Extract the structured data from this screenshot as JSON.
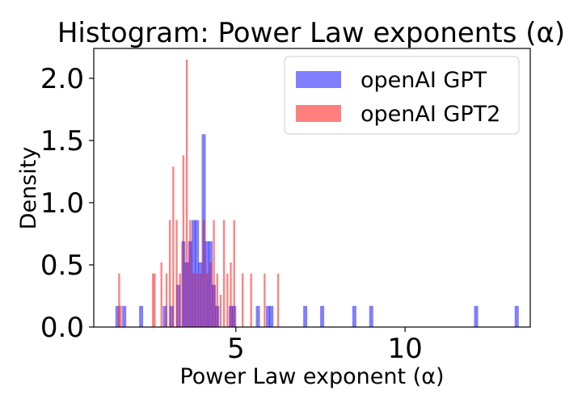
{
  "chart_data": {
    "type": "histogram",
    "title": "Histogram: Power Law exponents (α)",
    "xlabel": "Power Law exponent (α)",
    "ylabel": "Density",
    "xlim": [
      0.8,
      13.7
    ],
    "ylim": [
      0,
      2.24
    ],
    "xticks": [
      5,
      10
    ],
    "xtick_labels": [
      "5",
      "10"
    ],
    "yticks": [
      0,
      0.5,
      1.0,
      1.5,
      2.0
    ],
    "ytick_labels": [
      "0.0",
      "0.5",
      "1.0",
      "1.5",
      "2.0"
    ],
    "grid": false,
    "legend_position": "top-right",
    "series": [
      {
        "name": "openAI GPT",
        "color": "#0000ff",
        "opacity": 0.5,
        "bin_width": 0.12,
        "bars": [
          {
            "x": 1.5,
            "y": 0.17
          },
          {
            "x": 1.7,
            "y": 0.17
          },
          {
            "x": 2.2,
            "y": 0.17
          },
          {
            "x": 2.9,
            "y": 0.17
          },
          {
            "x": 3.1,
            "y": 0.17
          },
          {
            "x": 3.3,
            "y": 0.34
          },
          {
            "x": 3.45,
            "y": 0.69
          },
          {
            "x": 3.55,
            "y": 0.52
          },
          {
            "x": 3.65,
            "y": 0.69
          },
          {
            "x": 3.75,
            "y": 0.86
          },
          {
            "x": 3.85,
            "y": 0.86
          },
          {
            "x": 3.95,
            "y": 0.52
          },
          {
            "x": 4.05,
            "y": 1.55
          },
          {
            "x": 4.15,
            "y": 0.69
          },
          {
            "x": 4.25,
            "y": 0.69
          },
          {
            "x": 4.35,
            "y": 0.34
          },
          {
            "x": 4.45,
            "y": 0.17
          },
          {
            "x": 4.85,
            "y": 0.17
          },
          {
            "x": 4.95,
            "y": 0.17
          },
          {
            "x": 5.65,
            "y": 0.17
          },
          {
            "x": 5.95,
            "y": 0.17
          },
          {
            "x": 6.05,
            "y": 0.17
          },
          {
            "x": 7.05,
            "y": 0.17
          },
          {
            "x": 7.55,
            "y": 0.17
          },
          {
            "x": 8.5,
            "y": 0.17
          },
          {
            "x": 9.0,
            "y": 0.17
          },
          {
            "x": 12.1,
            "y": 0.17
          },
          {
            "x": 13.3,
            "y": 0.17
          }
        ]
      },
      {
        "name": "openAI GPT2",
        "color": "#ff0000",
        "opacity": 0.5,
        "bin_width": 0.055,
        "bars": [
          {
            "x": 1.55,
            "y": 0.43
          },
          {
            "x": 1.6,
            "y": 0.17
          },
          {
            "x": 2.55,
            "y": 0.43
          },
          {
            "x": 2.6,
            "y": 0.43
          },
          {
            "x": 2.8,
            "y": 0.52
          },
          {
            "x": 2.95,
            "y": 0.43
          },
          {
            "x": 3.05,
            "y": 0.86
          },
          {
            "x": 3.15,
            "y": 1.29
          },
          {
            "x": 3.25,
            "y": 0.86
          },
          {
            "x": 3.35,
            "y": 0.43
          },
          {
            "x": 3.45,
            "y": 1.38
          },
          {
            "x": 3.55,
            "y": 2.15
          },
          {
            "x": 3.65,
            "y": 0.86
          },
          {
            "x": 3.75,
            "y": 0.43
          },
          {
            "x": 3.85,
            "y": 0.43
          },
          {
            "x": 3.95,
            "y": 0.43
          },
          {
            "x": 4.05,
            "y": 0.86
          },
          {
            "x": 4.15,
            "y": 0.43
          },
          {
            "x": 4.25,
            "y": 0.52
          },
          {
            "x": 4.35,
            "y": 0.86
          },
          {
            "x": 4.45,
            "y": 0.43
          },
          {
            "x": 4.55,
            "y": 0.26
          },
          {
            "x": 4.65,
            "y": 0.86
          },
          {
            "x": 4.75,
            "y": 0.43
          },
          {
            "x": 4.85,
            "y": 0.52
          },
          {
            "x": 4.95,
            "y": 0.86
          },
          {
            "x": 5.2,
            "y": 0.43
          },
          {
            "x": 5.45,
            "y": 0.43
          },
          {
            "x": 5.85,
            "y": 0.43
          },
          {
            "x": 6.25,
            "y": 0.43
          }
        ]
      }
    ]
  }
}
